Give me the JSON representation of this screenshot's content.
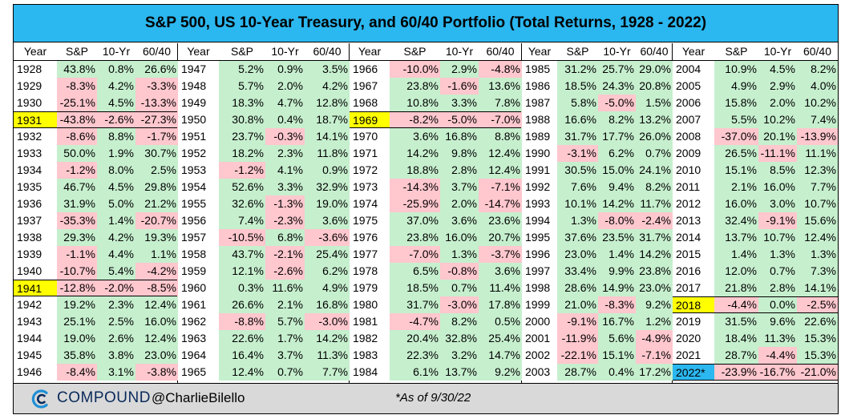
{
  "title": "S&P 500, US 10-Year Treasury, and 60/40 Portfolio (Total Returns, 1928 - 2022)",
  "columns": [
    "Year",
    "S&P",
    "10-Yr",
    "60/40"
  ],
  "colors": {
    "header_bg": "#2bb7ef",
    "positive_bg": "#c6efce",
    "negative_bg": "#ffc7ce",
    "highlight_yellow": "#ffff00",
    "highlight_blue": "#2bb7ef",
    "footer_bg": "#d9d9d9"
  },
  "blocks": [
    {
      "rows": [
        {
          "year": "1928",
          "sp": "43.8%",
          "tsy": "0.8%",
          "mix": "26.6%"
        },
        {
          "year": "1929",
          "sp": "-8.3%",
          "tsy": "4.2%",
          "mix": "-3.3%"
        },
        {
          "year": "1930",
          "sp": "-25.1%",
          "tsy": "4.5%",
          "mix": "-13.3%"
        },
        {
          "year": "1931",
          "sp": "-43.8%",
          "tsy": "-2.6%",
          "mix": "-27.3%",
          "highlight": "yellow"
        },
        {
          "year": "1932",
          "sp": "-8.6%",
          "tsy": "8.8%",
          "mix": "-1.7%"
        },
        {
          "year": "1933",
          "sp": "50.0%",
          "tsy": "1.9%",
          "mix": "30.7%"
        },
        {
          "year": "1934",
          "sp": "-1.2%",
          "tsy": "8.0%",
          "mix": "2.5%"
        },
        {
          "year": "1935",
          "sp": "46.7%",
          "tsy": "4.5%",
          "mix": "29.8%"
        },
        {
          "year": "1936",
          "sp": "31.9%",
          "tsy": "5.0%",
          "mix": "21.2%"
        },
        {
          "year": "1937",
          "sp": "-35.3%",
          "tsy": "1.4%",
          "mix": "-20.7%"
        },
        {
          "year": "1938",
          "sp": "29.3%",
          "tsy": "4.2%",
          "mix": "19.3%"
        },
        {
          "year": "1939",
          "sp": "-1.1%",
          "tsy": "4.4%",
          "mix": "1.1%"
        },
        {
          "year": "1940",
          "sp": "-10.7%",
          "tsy": "5.4%",
          "mix": "-4.2%"
        },
        {
          "year": "1941",
          "sp": "-12.8%",
          "tsy": "-2.0%",
          "mix": "-8.5%",
          "highlight": "yellow"
        },
        {
          "year": "1942",
          "sp": "19.2%",
          "tsy": "2.3%",
          "mix": "12.4%"
        },
        {
          "year": "1943",
          "sp": "25.1%",
          "tsy": "2.5%",
          "mix": "16.0%"
        },
        {
          "year": "1944",
          "sp": "19.0%",
          "tsy": "2.6%",
          "mix": "12.4%"
        },
        {
          "year": "1945",
          "sp": "35.8%",
          "tsy": "3.8%",
          "mix": "23.0%"
        },
        {
          "year": "1946",
          "sp": "-8.4%",
          "tsy": "3.1%",
          "mix": "-3.8%"
        }
      ]
    },
    {
      "rows": [
        {
          "year": "1947",
          "sp": "5.2%",
          "tsy": "0.9%",
          "mix": "3.5%"
        },
        {
          "year": "1948",
          "sp": "5.7%",
          "tsy": "2.0%",
          "mix": "4.2%"
        },
        {
          "year": "1949",
          "sp": "18.3%",
          "tsy": "4.7%",
          "mix": "12.8%"
        },
        {
          "year": "1950",
          "sp": "30.8%",
          "tsy": "0.4%",
          "mix": "18.7%"
        },
        {
          "year": "1951",
          "sp": "23.7%",
          "tsy": "-0.3%",
          "mix": "14.1%"
        },
        {
          "year": "1952",
          "sp": "18.2%",
          "tsy": "2.3%",
          "mix": "11.8%"
        },
        {
          "year": "1953",
          "sp": "-1.2%",
          "tsy": "4.1%",
          "mix": "0.9%"
        },
        {
          "year": "1954",
          "sp": "52.6%",
          "tsy": "3.3%",
          "mix": "32.9%"
        },
        {
          "year": "1955",
          "sp": "32.6%",
          "tsy": "-1.3%",
          "mix": "19.0%"
        },
        {
          "year": "1956",
          "sp": "7.4%",
          "tsy": "-2.3%",
          "mix": "3.6%"
        },
        {
          "year": "1957",
          "sp": "-10.5%",
          "tsy": "6.8%",
          "mix": "-3.6%"
        },
        {
          "year": "1958",
          "sp": "43.7%",
          "tsy": "-2.1%",
          "mix": "25.4%"
        },
        {
          "year": "1959",
          "sp": "12.1%",
          "tsy": "-2.6%",
          "mix": "6.2%"
        },
        {
          "year": "1960",
          "sp": "0.3%",
          "tsy": "11.6%",
          "mix": "4.9%"
        },
        {
          "year": "1961",
          "sp": "26.6%",
          "tsy": "2.1%",
          "mix": "16.8%"
        },
        {
          "year": "1962",
          "sp": "-8.8%",
          "tsy": "5.7%",
          "mix": "-3.0%"
        },
        {
          "year": "1963",
          "sp": "22.6%",
          "tsy": "1.7%",
          "mix": "14.2%"
        },
        {
          "year": "1964",
          "sp": "16.4%",
          "tsy": "3.7%",
          "mix": "11.3%"
        },
        {
          "year": "1965",
          "sp": "12.4%",
          "tsy": "0.7%",
          "mix": "7.7%"
        }
      ]
    },
    {
      "rows": [
        {
          "year": "1966",
          "sp": "-10.0%",
          "tsy": "2.9%",
          "mix": "-4.8%"
        },
        {
          "year": "1967",
          "sp": "23.8%",
          "tsy": "-1.6%",
          "mix": "13.6%"
        },
        {
          "year": "1968",
          "sp": "10.8%",
          "tsy": "3.3%",
          "mix": "7.8%"
        },
        {
          "year": "1969",
          "sp": "-8.2%",
          "tsy": "-5.0%",
          "mix": "-7.0%",
          "highlight": "yellow"
        },
        {
          "year": "1970",
          "sp": "3.6%",
          "tsy": "16.8%",
          "mix": "8.8%"
        },
        {
          "year": "1971",
          "sp": "14.2%",
          "tsy": "9.8%",
          "mix": "12.4%"
        },
        {
          "year": "1972",
          "sp": "18.8%",
          "tsy": "2.8%",
          "mix": "12.4%"
        },
        {
          "year": "1973",
          "sp": "-14.3%",
          "tsy": "3.7%",
          "mix": "-7.1%"
        },
        {
          "year": "1974",
          "sp": "-25.9%",
          "tsy": "2.0%",
          "mix": "-14.7%"
        },
        {
          "year": "1975",
          "sp": "37.0%",
          "tsy": "3.6%",
          "mix": "23.6%"
        },
        {
          "year": "1976",
          "sp": "23.8%",
          "tsy": "16.0%",
          "mix": "20.7%"
        },
        {
          "year": "1977",
          "sp": "-7.0%",
          "tsy": "1.3%",
          "mix": "-3.7%"
        },
        {
          "year": "1978",
          "sp": "6.5%",
          "tsy": "-0.8%",
          "mix": "3.6%"
        },
        {
          "year": "1979",
          "sp": "18.5%",
          "tsy": "0.7%",
          "mix": "11.4%"
        },
        {
          "year": "1980",
          "sp": "31.7%",
          "tsy": "-3.0%",
          "mix": "17.8%"
        },
        {
          "year": "1981",
          "sp": "-4.7%",
          "tsy": "8.2%",
          "mix": "0.5%"
        },
        {
          "year": "1982",
          "sp": "20.4%",
          "tsy": "32.8%",
          "mix": "25.4%"
        },
        {
          "year": "1983",
          "sp": "22.3%",
          "tsy": "3.2%",
          "mix": "14.7%"
        },
        {
          "year": "1984",
          "sp": "6.1%",
          "tsy": "13.7%",
          "mix": "9.2%"
        }
      ]
    },
    {
      "rows": [
        {
          "year": "1985",
          "sp": "31.2%",
          "tsy": "25.7%",
          "mix": "29.0%"
        },
        {
          "year": "1986",
          "sp": "18.5%",
          "tsy": "24.3%",
          "mix": "20.8%"
        },
        {
          "year": "1987",
          "sp": "5.8%",
          "tsy": "-5.0%",
          "mix": "1.5%"
        },
        {
          "year": "1988",
          "sp": "16.6%",
          "tsy": "8.2%",
          "mix": "13.2%"
        },
        {
          "year": "1989",
          "sp": "31.7%",
          "tsy": "17.7%",
          "mix": "26.0%"
        },
        {
          "year": "1990",
          "sp": "-3.1%",
          "tsy": "6.2%",
          "mix": "0.7%"
        },
        {
          "year": "1991",
          "sp": "30.5%",
          "tsy": "15.0%",
          "mix": "24.1%"
        },
        {
          "year": "1992",
          "sp": "7.6%",
          "tsy": "9.4%",
          "mix": "8.2%"
        },
        {
          "year": "1993",
          "sp": "10.1%",
          "tsy": "14.2%",
          "mix": "11.7%"
        },
        {
          "year": "1994",
          "sp": "1.3%",
          "tsy": "-8.0%",
          "mix": "-2.4%"
        },
        {
          "year": "1995",
          "sp": "37.6%",
          "tsy": "23.5%",
          "mix": "31.7%"
        },
        {
          "year": "1996",
          "sp": "23.0%",
          "tsy": "1.4%",
          "mix": "14.2%"
        },
        {
          "year": "1997",
          "sp": "33.4%",
          "tsy": "9.9%",
          "mix": "23.8%"
        },
        {
          "year": "1998",
          "sp": "28.6%",
          "tsy": "14.9%",
          "mix": "23.0%"
        },
        {
          "year": "1999",
          "sp": "21.0%",
          "tsy": "-8.3%",
          "mix": "9.2%"
        },
        {
          "year": "2000",
          "sp": "-9.1%",
          "tsy": "16.7%",
          "mix": "1.2%"
        },
        {
          "year": "2001",
          "sp": "-11.9%",
          "tsy": "5.6%",
          "mix": "-4.9%"
        },
        {
          "year": "2002",
          "sp": "-22.1%",
          "tsy": "15.1%",
          "mix": "-7.1%"
        },
        {
          "year": "2003",
          "sp": "28.7%",
          "tsy": "0.4%",
          "mix": "17.2%"
        }
      ]
    },
    {
      "rows": [
        {
          "year": "2004",
          "sp": "10.9%",
          "tsy": "4.5%",
          "mix": "8.2%"
        },
        {
          "year": "2005",
          "sp": "4.9%",
          "tsy": "2.9%",
          "mix": "4.0%"
        },
        {
          "year": "2006",
          "sp": "15.8%",
          "tsy": "2.0%",
          "mix": "10.2%"
        },
        {
          "year": "2007",
          "sp": "5.5%",
          "tsy": "10.2%",
          "mix": "7.4%"
        },
        {
          "year": "2008",
          "sp": "-37.0%",
          "tsy": "20.1%",
          "mix": "-13.9%"
        },
        {
          "year": "2009",
          "sp": "26.5%",
          "tsy": "-11.1%",
          "mix": "11.1%"
        },
        {
          "year": "2010",
          "sp": "15.1%",
          "tsy": "8.5%",
          "mix": "12.3%"
        },
        {
          "year": "2011",
          "sp": "2.1%",
          "tsy": "16.0%",
          "mix": "7.7%"
        },
        {
          "year": "2012",
          "sp": "16.0%",
          "tsy": "3.0%",
          "mix": "10.7%"
        },
        {
          "year": "2013",
          "sp": "32.4%",
          "tsy": "-9.1%",
          "mix": "15.6%"
        },
        {
          "year": "2014",
          "sp": "13.7%",
          "tsy": "10.7%",
          "mix": "12.4%"
        },
        {
          "year": "2015",
          "sp": "1.4%",
          "tsy": "1.3%",
          "mix": "1.3%"
        },
        {
          "year": "2016",
          "sp": "12.0%",
          "tsy": "0.7%",
          "mix": "7.3%"
        },
        {
          "year": "2017",
          "sp": "21.8%",
          "tsy": "2.8%",
          "mix": "14.1%"
        },
        {
          "year": "2018",
          "sp": "-4.4%",
          "tsy": "0.0%",
          "mix": "-2.5%",
          "highlight": "yellow"
        },
        {
          "year": "2019",
          "sp": "31.5%",
          "tsy": "9.6%",
          "mix": "22.6%"
        },
        {
          "year": "2020",
          "sp": "18.4%",
          "tsy": "11.3%",
          "mix": "15.3%"
        },
        {
          "year": "2021",
          "sp": "28.7%",
          "tsy": "-4.4%",
          "mix": "15.3%"
        },
        {
          "year": "2022*",
          "sp": "-23.9%",
          "tsy": "-16.7%",
          "mix": "-21.0%",
          "highlight": "blue"
        }
      ]
    }
  ],
  "footer": {
    "brand": "COMPOUND",
    "handle": "@CharlieBilello",
    "note": "*As of 9/30/22",
    "logo_icon": "compound-logo-icon"
  }
}
